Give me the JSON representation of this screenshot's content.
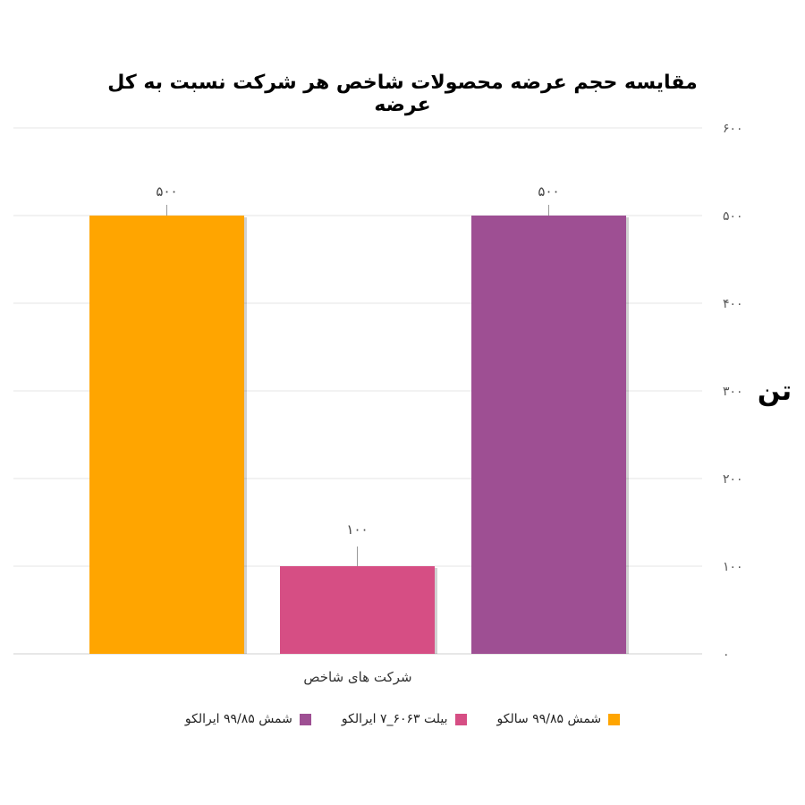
{
  "chart_data": {
    "type": "bar",
    "title": "مقایسه حجم عرضه محصولات شاخص هر شرکت نسبت به کل عرضه",
    "xlabel": "شرکت های شاخص",
    "ylabel": "تن",
    "ylim": [
      0,
      600
    ],
    "yticks": [
      0,
      100,
      200,
      300,
      400,
      500,
      600
    ],
    "ytick_labels": [
      "۰",
      "۱۰۰",
      "۲۰۰",
      "۳۰۰",
      "۴۰۰",
      "۵۰۰",
      "۶۰۰"
    ],
    "grid": true,
    "legend_position": "bottom",
    "categories": [
      "شمش ۹۹/۸۵ سالکو",
      "بیلت ۶۰۶۳_۷ ایرالکو",
      "شمش ۹۹/۸۵ ایرالکو"
    ],
    "values": [
      500,
      100,
      500
    ],
    "value_labels": [
      "۵۰۰",
      "۱۰۰",
      "۵۰۰"
    ],
    "colors": [
      "#FFA500",
      "#D64E84",
      "#9E4F93"
    ]
  }
}
